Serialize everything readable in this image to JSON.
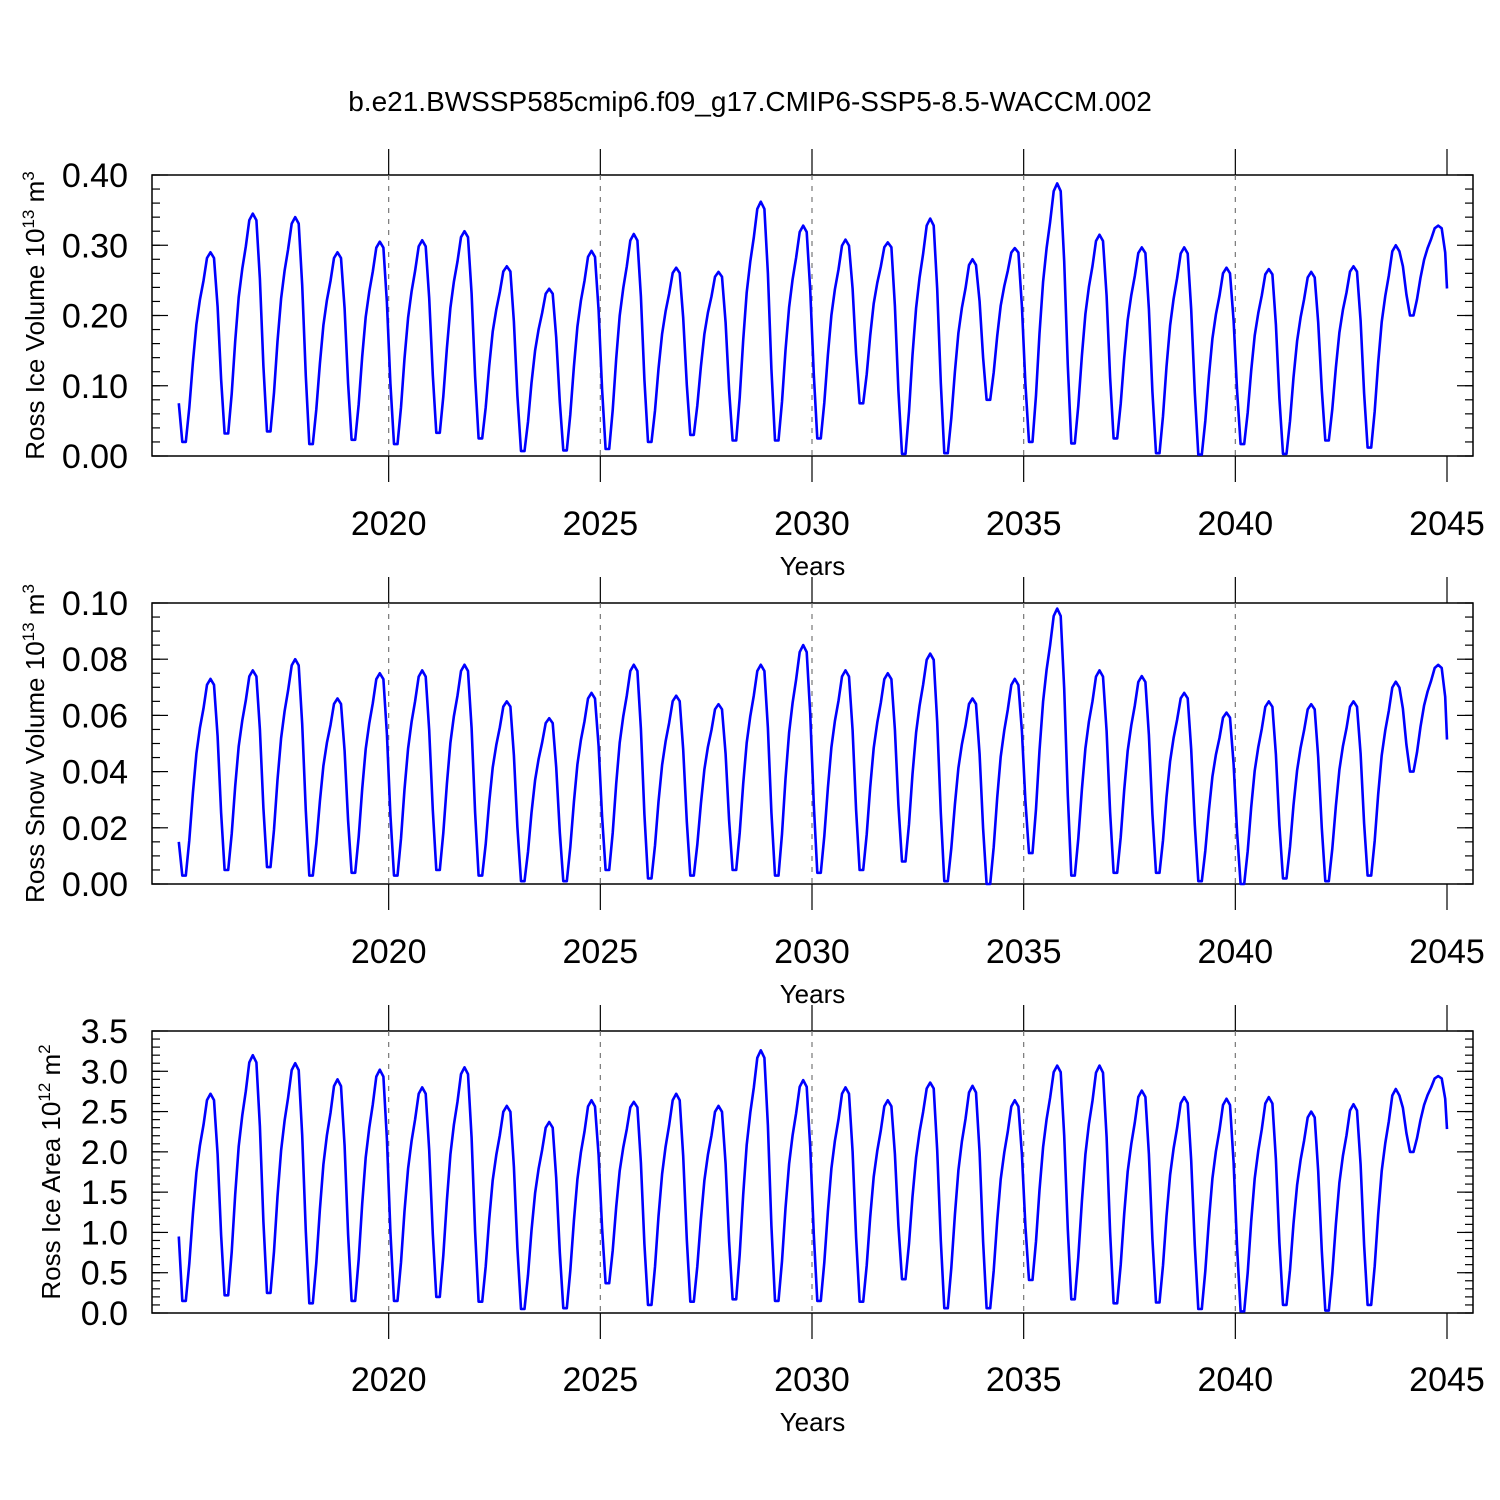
{
  "figure_title": "b.e21.BWSSP585cmip6.f09_g17.CMIP6-SSP5-8.5-WACCM.002",
  "colors": {
    "series": "#0000ff",
    "axes": "#000000",
    "grid": "#777777"
  },
  "chart_data": [
    {
      "type": "line",
      "title": "b.e21.BWSSP585cmip6.f09_g17.CMIP6-SSP5-8.5-WACCM.002",
      "ylabel_main": "Ross Ice Volume 10",
      "ylabel_exp": "13",
      "ylabel_unit": " m",
      "ylabel_unit_exp": "3",
      "xlabel": "Years",
      "xlim": [
        2015,
        2045
      ],
      "ylim": [
        0,
        0.4
      ],
      "xticks": [
        2020,
        2025,
        2030,
        2035,
        2040,
        2045
      ],
      "xtick_labels": [
        "2020",
        "2025",
        "2030",
        "2035",
        "2040",
        "2045"
      ],
      "yticks": [
        0,
        0.1,
        0.2,
        0.3,
        0.4
      ],
      "ytick_labels": [
        "0.00",
        "0.10",
        "0.20",
        "0.30",
        "0.40"
      ],
      "minor_ytick_step": 0.02,
      "grid_x": [
        2020,
        2025,
        2030,
        2035,
        2040
      ],
      "series": [
        {
          "name": "Ross Ice Volume",
          "start_year": 2015.0417,
          "step": 0.08333333,
          "peaks": [
            0.29,
            0.345,
            0.34,
            0.29,
            0.305,
            0.307,
            0.32,
            0.27,
            0.238,
            0.292,
            0.316,
            0.268,
            0.262,
            0.362,
            0.328,
            0.308,
            0.304,
            0.338,
            0.28,
            0.296,
            0.388,
            0.315,
            0.297,
            0.297,
            0.268,
            0.266,
            0.262,
            0.27,
            0.3,
            0.328
          ],
          "troughs": [
            0.02,
            0.032,
            0.035,
            0.017,
            0.023,
            0.017,
            0.033,
            0.025,
            0.007,
            0.008,
            0.01,
            0.02,
            0.03,
            0.022,
            0.022,
            0.025,
            0.075,
            0.003,
            0.004,
            0.08,
            0.02,
            0.018,
            0.025,
            0.004,
            0.002,
            0.017,
            0.003,
            0.022,
            0.012,
            0.2
          ],
          "first_value": 0.075
        }
      ]
    },
    {
      "type": "line",
      "ylabel_main": "Ross Snow Volume 10",
      "ylabel_exp": "13",
      "ylabel_unit": " m",
      "ylabel_unit_exp": "3",
      "xlabel": "Years",
      "xlim": [
        2015,
        2045
      ],
      "ylim": [
        0,
        0.1
      ],
      "xticks": [
        2020,
        2025,
        2030,
        2035,
        2040,
        2045
      ],
      "xtick_labels": [
        "2020",
        "2025",
        "2030",
        "2035",
        "2040",
        "2045"
      ],
      "yticks": [
        0,
        0.02,
        0.04,
        0.06,
        0.08,
        0.1
      ],
      "ytick_labels": [
        "0.00",
        "0.02",
        "0.04",
        "0.06",
        "0.08",
        "0.10"
      ],
      "minor_ytick_step": 0.005,
      "grid_x": [
        2020,
        2025,
        2030,
        2035,
        2040
      ],
      "series": [
        {
          "name": "Ross Snow Volume",
          "start_year": 2015.0417,
          "step": 0.08333333,
          "peaks": [
            0.073,
            0.076,
            0.08,
            0.066,
            0.075,
            0.076,
            0.078,
            0.065,
            0.059,
            0.068,
            0.078,
            0.067,
            0.064,
            0.078,
            0.085,
            0.076,
            0.075,
            0.082,
            0.066,
            0.073,
            0.098,
            0.076,
            0.074,
            0.068,
            0.061,
            0.065,
            0.064,
            0.065,
            0.072,
            0.078
          ],
          "troughs": [
            0.003,
            0.005,
            0.006,
            0.003,
            0.004,
            0.003,
            0.005,
            0.003,
            0.001,
            0.001,
            0.005,
            0.002,
            0.003,
            0.005,
            0.003,
            0.004,
            0.005,
            0.008,
            0.001,
            0.0,
            0.011,
            0.003,
            0.004,
            0.004,
            0.001,
            0.0,
            0.002,
            0.001,
            0.003,
            0.04
          ],
          "first_value": 0.015
        }
      ]
    },
    {
      "type": "line",
      "ylabel_main": "Ross Ice Area 10",
      "ylabel_exp": "12",
      "ylabel_unit": " m",
      "ylabel_unit_exp": "2",
      "xlabel": "Years",
      "xlim": [
        2015,
        2045
      ],
      "ylim": [
        0,
        3.5
      ],
      "xticks": [
        2020,
        2025,
        2030,
        2035,
        2040,
        2045
      ],
      "xtick_labels": [
        "2020",
        "2025",
        "2030",
        "2035",
        "2040",
        "2045"
      ],
      "yticks": [
        0,
        0.5,
        1.0,
        1.5,
        2.0,
        2.5,
        3.0,
        3.5
      ],
      "ytick_labels": [
        "0.0",
        "0.5",
        "1.0",
        "1.5",
        "2.0",
        "2.5",
        "3.0",
        "3.5"
      ],
      "minor_ytick_step": 0.1,
      "grid_x": [
        2020,
        2025,
        2030,
        2035,
        2040
      ],
      "series": [
        {
          "name": "Ross Ice Area",
          "start_year": 2015.0417,
          "step": 0.08333333,
          "peaks": [
            2.72,
            3.2,
            3.1,
            2.9,
            3.02,
            2.8,
            3.05,
            2.57,
            2.37,
            2.64,
            2.62,
            2.72,
            2.57,
            3.26,
            2.89,
            2.8,
            2.64,
            2.86,
            2.82,
            2.64,
            3.07,
            3.07,
            2.76,
            2.68,
            2.66,
            2.68,
            2.5,
            2.59,
            2.78,
            2.94
          ],
          "troughs": [
            0.15,
            0.22,
            0.25,
            0.12,
            0.15,
            0.15,
            0.2,
            0.14,
            0.05,
            0.06,
            0.37,
            0.1,
            0.14,
            0.17,
            0.15,
            0.15,
            0.14,
            0.42,
            0.06,
            0.06,
            0.41,
            0.17,
            0.12,
            0.13,
            0.05,
            0.02,
            0.1,
            0.03,
            0.1,
            2.0
          ],
          "first_value": 0.95
        }
      ]
    }
  ]
}
